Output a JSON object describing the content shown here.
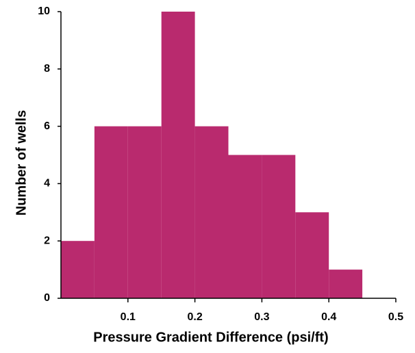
{
  "chart_data": {
    "type": "histogram",
    "xlabel": "Pressure Gradient Difference (psi/ft)",
    "ylabel": "Number of wells",
    "bins": [
      0,
      0.05,
      0.1,
      0.15,
      0.2,
      0.25,
      0.3,
      0.35,
      0.4,
      0.45
    ],
    "values": [
      2,
      6,
      6,
      10,
      6,
      5,
      5,
      3,
      1
    ],
    "color": "#b92a6e",
    "xlim": [
      0,
      0.5
    ],
    "xticks": [
      0.1,
      0.2,
      0.3,
      0.4,
      0.5
    ],
    "ylim": [
      0,
      10
    ],
    "yticks": [
      0,
      2,
      4,
      6,
      8,
      10
    ]
  }
}
